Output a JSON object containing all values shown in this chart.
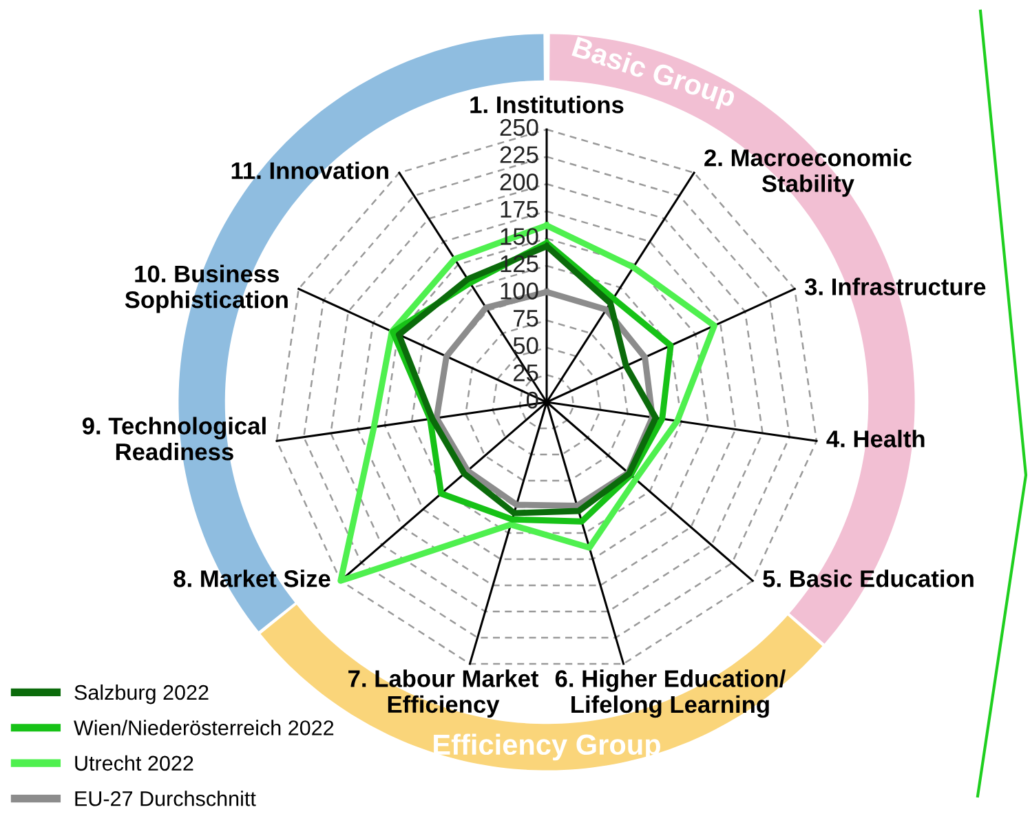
{
  "chart_data": {
    "type": "radar",
    "categories": [
      "1. Institutions",
      "2. Macroeconomic\nStability",
      "3. Infrastructure",
      "4. Health",
      "5. Basic Education",
      "6. Higher Education/\nLifelong Learning",
      "7. Labour Market\nEfficiency",
      "8. Market Size",
      "9. Technological\nReadiness",
      "10. Business\nSophistication",
      "11. Innovation"
    ],
    "series": [
      {
        "name": "Salzburg 2022",
        "color": "#0b6b0b",
        "values": [
          143,
          108,
          80,
          101,
          100,
          104,
          106,
          100,
          106,
          149,
          134
        ]
      },
      {
        "name": "Wien/Niederösterreich 2022",
        "color": "#17c217",
        "values": [
          146,
          113,
          125,
          107,
          102,
          114,
          112,
          128,
          108,
          155,
          130
        ]
      },
      {
        "name": "Utrecht 2022",
        "color": "#4ff04f",
        "values": [
          162,
          147,
          169,
          121,
          108,
          139,
          117,
          250,
          160,
          156,
          156
        ]
      },
      {
        "name": "EU-27 Durchschnitt",
        "color": "#8c8c8c",
        "values": [
          101,
          101,
          99,
          98,
          99,
          99,
          98,
          96,
          102,
          101,
          103
        ]
      }
    ],
    "ylim": [
      0,
      250
    ],
    "yticks": [
      0,
      25,
      50,
      75,
      100,
      125,
      150,
      175,
      200,
      225,
      250
    ],
    "grid": true,
    "legend": "bottom left",
    "line_style": "solid",
    "marker": "none",
    "annotations": [
      "Basic Group",
      "Efficiency Group"
    ]
  }
}
